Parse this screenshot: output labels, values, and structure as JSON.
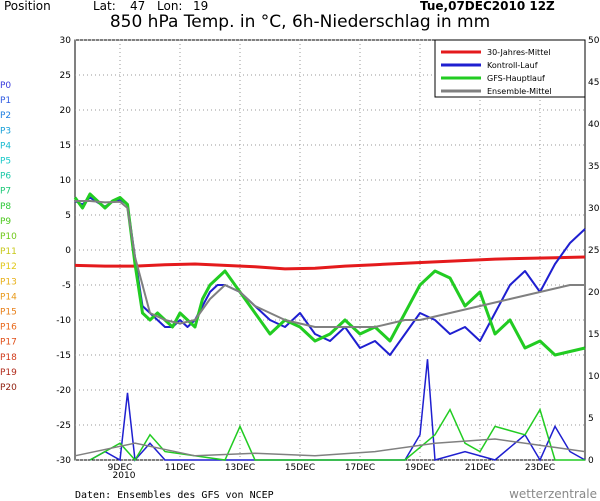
{
  "header": {
    "position_label": "Position",
    "lat_label": "Lat:",
    "lat_value": "47",
    "lon_label": "Lon:",
    "lon_value": "19",
    "run_label": "Tue,07DEC2010 12Z"
  },
  "chart_data": {
    "type": "line",
    "title": "850 hPa Temp. in °C, 6h-Niederschlag in mm",
    "left_axis": {
      "ylim": [
        -30,
        30
      ],
      "ticks": [
        30,
        25,
        20,
        15,
        10,
        5,
        0,
        -5,
        -10,
        -15,
        -20,
        -25,
        -30
      ]
    },
    "right_axis": {
      "ylim": [
        0,
        50
      ],
      "ticks": [
        50,
        45,
        40,
        35,
        30,
        25,
        20,
        15,
        10,
        5,
        0
      ]
    },
    "x_axis": {
      "xlim": [
        0,
        17
      ],
      "days_from_07DEC": true,
      "ticks": [
        {
          "label": "9DEC",
          "x": 1.5
        },
        {
          "label": "11DEC",
          "x": 3.5
        },
        {
          "label": "13DEC",
          "x": 5.5
        },
        {
          "label": "15DEC",
          "x": 7.5
        },
        {
          "label": "17DEC",
          "x": 9.5
        },
        {
          "label": "19DEC",
          "x": 11.5
        },
        {
          "label": "21DEC",
          "x": 13.5
        },
        {
          "label": "23DEC",
          "x": 15.5
        }
      ],
      "sub_label": "2010"
    },
    "legend": {
      "placement": "top-right",
      "items": [
        {
          "label": "30-Jahres-Mittel",
          "color": "#e41a1c"
        },
        {
          "label": "Kontroll-Lauf",
          "color": "#1f1fd0"
        },
        {
          "label": "GFS-Hauptlauf",
          "color": "#22cc22"
        },
        {
          "label": "Ensemble-Mittel",
          "color": "#808080"
        }
      ]
    },
    "series": [
      {
        "name": "30-Jahres-Mittel",
        "color": "#e41a1c",
        "width": 3,
        "x": [
          0,
          1,
          2,
          3,
          4,
          5,
          6,
          7,
          8,
          9,
          10,
          11,
          12,
          13,
          14,
          15,
          16,
          17
        ],
        "y": [
          -2.2,
          -2.3,
          -2.3,
          -2.1,
          -2.0,
          -2.2,
          -2.4,
          -2.7,
          -2.6,
          -2.3,
          -2.1,
          -1.9,
          -1.7,
          -1.5,
          -1.3,
          -1.2,
          -1.1,
          -1.0
        ]
      },
      {
        "name": "Kontroll-Lauf",
        "color": "#1f1fd0",
        "width": 2,
        "x": [
          0,
          0.25,
          0.5,
          0.75,
          1,
          1.25,
          1.5,
          1.75,
          2,
          2.25,
          2.5,
          2.75,
          3,
          3.25,
          3.5,
          3.75,
          4,
          4.25,
          4.5,
          4.75,
          5,
          5.5,
          6,
          6.5,
          7,
          7.5,
          8,
          8.5,
          9,
          9.5,
          10,
          10.5,
          11,
          11.5,
          12,
          12.5,
          13,
          13.5,
          14,
          14.5,
          15,
          15.5,
          16,
          16.5,
          17
        ],
        "y": [
          7,
          6.5,
          7.5,
          6.8,
          6.2,
          6.9,
          7.2,
          6.5,
          -1,
          -8,
          -9,
          -10,
          -11,
          -11,
          -10,
          -11,
          -10,
          -8,
          -6,
          -5,
          -5,
          -6,
          -8,
          -10,
          -11,
          -9,
          -12,
          -13,
          -11,
          -14,
          -13,
          -15,
          -12,
          -9,
          -10,
          -12,
          -11,
          -13,
          -9,
          -5,
          -3,
          -6,
          -2,
          1,
          3
        ]
      },
      {
        "name": "GFS-Hauptlauf",
        "color": "#22cc22",
        "width": 3,
        "x": [
          0,
          0.25,
          0.5,
          0.75,
          1,
          1.25,
          1.5,
          1.75,
          2,
          2.25,
          2.5,
          2.75,
          3,
          3.25,
          3.5,
          3.75,
          4,
          4.25,
          4.5,
          4.75,
          5,
          5.5,
          6,
          6.5,
          7,
          7.5,
          8,
          8.5,
          9,
          9.5,
          10,
          10.5,
          11,
          11.5,
          12,
          12.5,
          13,
          13.5,
          14,
          14.5,
          15,
          15.5,
          16,
          16.5,
          17
        ],
        "y": [
          7.5,
          6,
          8,
          7,
          6,
          7,
          7.5,
          6.5,
          -2,
          -9,
          -10,
          -9,
          -10,
          -11,
          -9,
          -10,
          -11,
          -7,
          -5,
          -4,
          -3,
          -6,
          -9,
          -12,
          -10,
          -11,
          -13,
          -12,
          -10,
          -12,
          -11,
          -13,
          -9,
          -5,
          -3,
          -4,
          -8,
          -6,
          -12,
          -10,
          -14,
          -13,
          -15,
          -14.5,
          -14
        ]
      },
      {
        "name": "Ensemble-Mittel",
        "color": "#808080",
        "width": 2,
        "x": [
          0,
          0.5,
          1,
          1.5,
          1.75,
          2,
          2.5,
          3,
          3.5,
          4,
          4.5,
          5,
          5.5,
          6,
          6.5,
          7,
          7.5,
          8,
          8.5,
          9,
          9.5,
          10,
          10.5,
          11,
          11.5,
          12,
          12.5,
          13,
          13.5,
          14,
          14.5,
          15,
          15.5,
          16,
          16.5,
          17
        ],
        "y": [
          7,
          7,
          6.8,
          6.9,
          6,
          -1,
          -9,
          -10,
          -10.5,
          -10,
          -7,
          -5,
          -6,
          -8,
          -9,
          -10,
          -10.5,
          -11,
          -11,
          -11,
          -11,
          -11,
          -10.5,
          -10,
          -10,
          -9.5,
          -9,
          -8.5,
          -8,
          -7.5,
          -7,
          -6.5,
          -6,
          -5.5,
          -5,
          -5
        ]
      }
    ],
    "precip_series": [
      {
        "name": "Kontroll-Lauf",
        "color": "#1f1fd0",
        "x": [
          0.5,
          1,
          1.5,
          1.75,
          2,
          2.5,
          3,
          11,
          11.5,
          11.75,
          12,
          13,
          14,
          15,
          15.5,
          16,
          16.5,
          17
        ],
        "y": [
          0,
          1,
          0,
          8,
          0,
          2,
          0,
          0,
          3,
          12,
          0,
          1,
          0,
          3,
          0,
          4,
          1,
          0
        ]
      },
      {
        "name": "GFS-Hauptlauf",
        "color": "#22cc22",
        "x": [
          0.5,
          1,
          1.5,
          2,
          2.5,
          3,
          5,
          5.5,
          6,
          11,
          12,
          12.5,
          13,
          13.5,
          14,
          15,
          15.5,
          16,
          17
        ],
        "y": [
          0,
          1,
          2,
          0,
          3,
          1,
          0,
          4,
          0,
          0,
          3,
          6,
          2,
          1,
          4,
          3,
          6,
          0,
          0
        ]
      },
      {
        "name": "Ensemble-Mittel",
        "color": "#808080",
        "x": [
          0,
          2,
          4,
          6,
          8,
          10,
          12,
          14,
          16,
          17
        ],
        "y": [
          0.5,
          2,
          0.5,
          0.8,
          0.5,
          1,
          2,
          2.5,
          1.5,
          1
        ]
      }
    ]
  },
  "side_labels": [
    "P0",
    "P1",
    "P2",
    "P3",
    "P4",
    "P5",
    "P6",
    "P7",
    "P8",
    "P9",
    "P10",
    "P11",
    "P12",
    "P13",
    "P14",
    "P15",
    "P16",
    "P17",
    "P18",
    "P19",
    "P20"
  ],
  "side_colors": [
    "#3a3adc",
    "#2f5ae0",
    "#1f7fe0",
    "#1aa0d8",
    "#1bbbd0",
    "#19c8c8",
    "#1cc8a8",
    "#1ec878",
    "#2ec83a",
    "#4cc81e",
    "#70c81a",
    "#c8c81a",
    "#e0c81a",
    "#e8b01a",
    "#e89a1a",
    "#e8801a",
    "#e8681a",
    "#e0501a",
    "#d03a1a",
    "#b02a1a",
    "#902010"
  ],
  "footer": {
    "source": "Daten: Ensembles des GFS von NCEP",
    "brand": "wetterzentrale"
  }
}
